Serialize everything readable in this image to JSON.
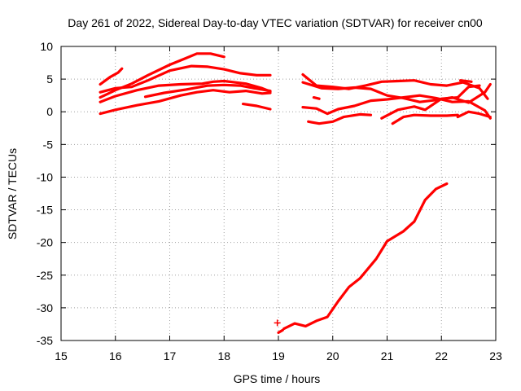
{
  "chart_data": {
    "type": "scatter",
    "title": "Day 261 of 2022, Sidereal Day-to-day VTEC variation (SDTVAR) for receiver cn00",
    "xlabel": "GPS time / hours",
    "ylabel": "SDTVAR / TECUs",
    "xlim": [
      15,
      23
    ],
    "ylim": [
      -35,
      10
    ],
    "xticks": [
      15,
      16,
      17,
      18,
      19,
      20,
      21,
      22,
      23
    ],
    "yticks": [
      10,
      5,
      0,
      -5,
      -10,
      -15,
      -20,
      -25,
      -30,
      -35
    ],
    "grid": true,
    "marker": "+",
    "color": "#ff0000",
    "series": [
      {
        "name": "s1",
        "x": [
          15.72,
          15.9,
          16.05,
          16.12
        ],
        "y": [
          4.2,
          5.3,
          6.0,
          6.6
        ]
      },
      {
        "name": "s2",
        "x": [
          15.72,
          16.0,
          16.3,
          16.6,
          17.0,
          17.3,
          17.5,
          17.75,
          18.0
        ],
        "y": [
          2.2,
          3.3,
          4.3,
          5.6,
          7.2,
          8.2,
          8.9,
          8.9,
          8.4
        ]
      },
      {
        "name": "s3",
        "x": [
          15.72,
          16.0,
          16.3,
          16.6,
          17.0,
          17.4,
          17.7,
          18.0,
          18.3,
          18.6,
          18.85
        ],
        "y": [
          3.0,
          3.6,
          3.8,
          4.8,
          6.3,
          7.0,
          6.9,
          6.5,
          5.9,
          5.6,
          5.6
        ]
      },
      {
        "name": "s4",
        "x": [
          15.72,
          16.0,
          16.4,
          16.8,
          17.2,
          17.6,
          17.8,
          18.0,
          18.4,
          18.7,
          18.85
        ],
        "y": [
          1.5,
          2.4,
          3.3,
          4.0,
          4.2,
          4.3,
          4.6,
          4.7,
          4.3,
          3.6,
          3.1
        ]
      },
      {
        "name": "s5",
        "x": [
          15.72,
          16.0,
          16.4,
          16.8,
          17.2,
          17.5,
          17.8,
          18.1,
          18.4,
          18.7,
          18.85
        ],
        "y": [
          -0.3,
          0.3,
          1.0,
          1.6,
          2.5,
          3.0,
          3.3,
          3.0,
          3.2,
          2.8,
          2.9
        ]
      },
      {
        "name": "s6",
        "x": [
          16.55,
          16.9,
          17.3,
          17.7,
          18.0,
          18.3,
          18.55,
          18.85
        ],
        "y": [
          2.3,
          2.9,
          3.4,
          4.0,
          4.1,
          4.0,
          3.6,
          3.2
        ]
      },
      {
        "name": "s7",
        "x": [
          18.35,
          18.6,
          18.85
        ],
        "y": [
          1.2,
          0.9,
          0.4
        ]
      },
      {
        "name": "s8",
        "x": [
          19.0,
          19.08
        ],
        "y": [
          -33.8,
          -33.4
        ]
      },
      {
        "name": "s9",
        "x": [
          19.1,
          19.3,
          19.5,
          19.7,
          19.9,
          20.1,
          20.3,
          20.5,
          20.8,
          21.0,
          21.3,
          21.5,
          21.7,
          21.9,
          22.1
        ],
        "y": [
          -33.2,
          -32.4,
          -32.8,
          -32.0,
          -31.4,
          -29.0,
          -26.8,
          -25.5,
          -22.5,
          -19.8,
          -18.3,
          -16.8,
          -13.5,
          -11.8,
          -11.0
        ]
      },
      {
        "name": "s10",
        "x": [
          19.45,
          19.7,
          20.0,
          20.3,
          20.6,
          20.9,
          21.2,
          21.5,
          21.8,
          22.1,
          22.4,
          22.7,
          22.85
        ],
        "y": [
          5.7,
          4.0,
          3.8,
          3.5,
          4.0,
          4.6,
          4.7,
          4.8,
          4.2,
          4.0,
          4.5,
          3.6,
          2.0
        ]
      },
      {
        "name": "s11",
        "x": [
          19.45,
          19.8,
          20.1,
          20.4,
          20.7,
          21.0,
          21.3,
          21.6,
          21.9,
          22.2,
          22.5,
          22.8,
          22.9
        ],
        "y": [
          4.5,
          3.6,
          3.5,
          3.7,
          3.5,
          2.5,
          2.1,
          1.5,
          1.8,
          2.2,
          1.4,
          3.0,
          4.2
        ]
      },
      {
        "name": "s12",
        "x": [
          19.45,
          19.7,
          19.9,
          20.1,
          20.4,
          20.7,
          21.0,
          21.3,
          21.6,
          21.9,
          22.2,
          22.5,
          22.8,
          22.9
        ],
        "y": [
          0.7,
          0.5,
          -0.3,
          0.4,
          0.9,
          1.7,
          1.9,
          2.2,
          2.5,
          2.1,
          1.5,
          1.6,
          0.2,
          -1.0
        ]
      },
      {
        "name": "s13",
        "x": [
          19.55,
          19.75,
          20.0,
          20.2,
          20.5,
          20.7
        ],
        "y": [
          -1.5,
          -1.8,
          -1.5,
          -0.8,
          -0.4,
          -0.5
        ]
      },
      {
        "name": "s14",
        "x": [
          19.65,
          19.75
        ],
        "y": [
          2.2,
          2.0
        ]
      },
      {
        "name": "s15",
        "x": [
          20.9,
          21.2,
          21.5,
          21.7,
          22.0,
          22.3,
          22.5,
          22.7
        ],
        "y": [
          -1.0,
          0.3,
          0.8,
          0.3,
          2.0,
          2.2,
          3.8,
          4.0
        ]
      },
      {
        "name": "s16",
        "x": [
          21.1,
          21.3,
          21.5,
          21.8,
          22.1,
          22.3
        ],
        "y": [
          -1.8,
          -0.8,
          -0.5,
          -0.6,
          -0.6,
          -0.5
        ]
      },
      {
        "name": "s17",
        "x": [
          22.3,
          22.5,
          22.7,
          22.9
        ],
        "y": [
          -0.8,
          0.0,
          -0.3,
          -0.8
        ]
      },
      {
        "name": "s18",
        "x": [
          22.35,
          22.55
        ],
        "y": [
          4.8,
          4.6
        ]
      }
    ],
    "points": [
      {
        "x": 18.98,
        "y": -32.3
      }
    ]
  }
}
